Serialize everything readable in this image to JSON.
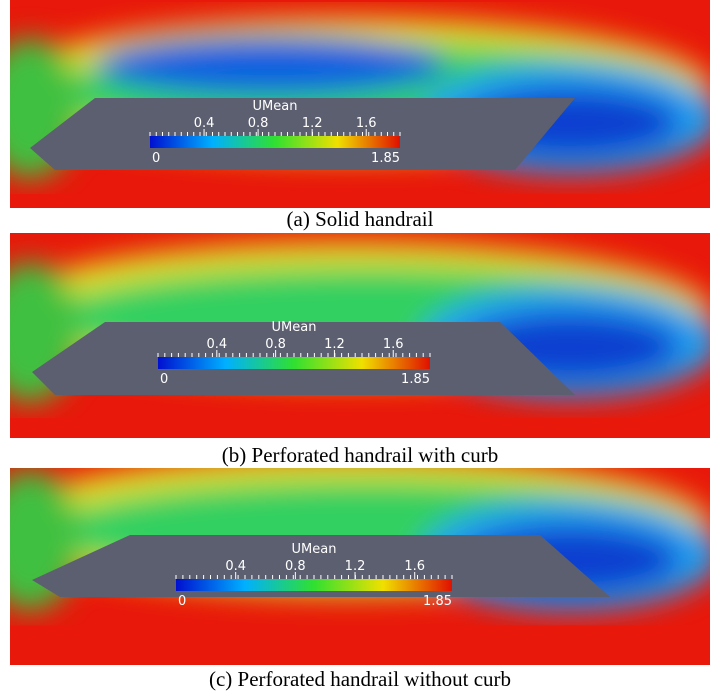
{
  "panels": [
    {
      "caption": "(a) Solid handrail",
      "colorbar": {
        "title": "UMean",
        "ticks": [
          0.4,
          0.8,
          1.2,
          1.6
        ],
        "min": 0,
        "max": 1.85
      }
    },
    {
      "caption": "(b) Perforated handrail with curb",
      "colorbar": {
        "title": "UMean",
        "ticks": [
          0.4,
          0.8,
          1.2,
          1.6
        ],
        "min": 0,
        "max": 1.85
      }
    },
    {
      "caption": "(c) Perforated handrail without curb",
      "colorbar": {
        "title": "UMean",
        "ticks": [
          0.4,
          0.8,
          1.2,
          1.6
        ],
        "min": 0,
        "max": 1.85
      }
    }
  ]
}
